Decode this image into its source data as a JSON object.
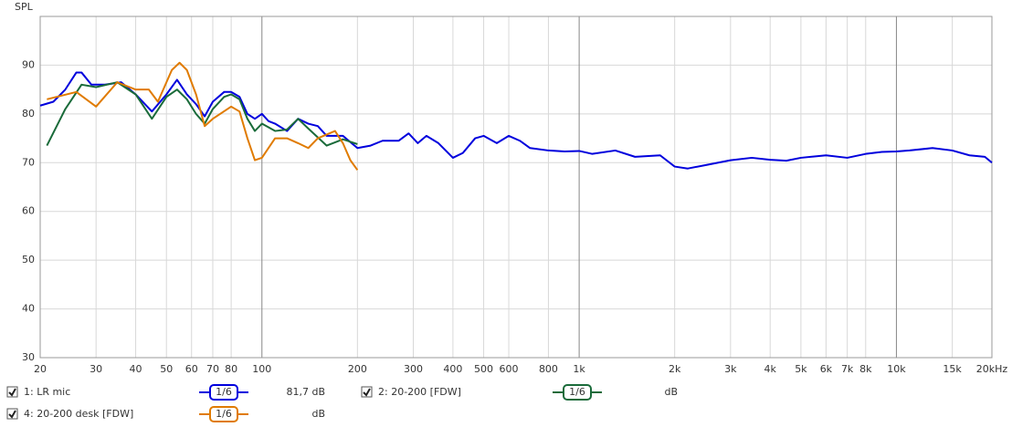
{
  "chart_data": {
    "type": "line",
    "y_label": "SPL",
    "log_x": true,
    "xlim": [
      20,
      20000
    ],
    "ylim": [
      30,
      100
    ],
    "yticks": [
      30,
      40,
      50,
      60,
      70,
      80,
      90
    ],
    "xticks": [
      20,
      30,
      40,
      50,
      60,
      70,
      80,
      100,
      200,
      300,
      400,
      500,
      600,
      800,
      {
        "value": 1000,
        "label": "1k"
      },
      {
        "value": 2000,
        "label": "2k"
      },
      {
        "value": 3000,
        "label": "3k"
      },
      {
        "value": 4000,
        "label": "4k"
      },
      {
        "value": 5000,
        "label": "5k"
      },
      {
        "value": 6000,
        "label": "6k"
      },
      {
        "value": 7000,
        "label": "7k"
      },
      {
        "value": 8000,
        "label": "8k"
      },
      {
        "value": 10000,
        "label": "10k"
      },
      {
        "value": 15000,
        "label": "15k"
      },
      {
        "value": 20000,
        "label": "20kHz"
      }
    ],
    "grid": true,
    "series": [
      {
        "name": "1: LR mic",
        "color": "#0000dd",
        "smoothing": "1/6",
        "readout": "81,7 dB",
        "x": [
          20,
          22,
          24,
          26,
          27,
          29,
          32,
          36,
          40,
          45,
          50,
          54,
          58,
          62,
          66,
          70,
          76,
          80,
          85,
          90,
          95,
          100,
          105,
          110,
          120,
          130,
          140,
          150,
          160,
          180,
          200,
          220,
          240,
          270,
          290,
          310,
          330,
          360,
          400,
          430,
          470,
          500,
          550,
          600,
          650,
          700,
          800,
          900,
          1000,
          1100,
          1300,
          1500,
          1800,
          2000,
          2200,
          2500,
          3000,
          3500,
          4000,
          4500,
          5000,
          6000,
          7000,
          8000,
          9000,
          10000,
          11000,
          13000,
          15000,
          17000,
          19000,
          20000
        ],
        "values": [
          81.7,
          82.5,
          85,
          88.5,
          88.5,
          86,
          86,
          86.5,
          84,
          80.5,
          84,
          87,
          84,
          82,
          79.5,
          82.5,
          84.5,
          84.5,
          83.5,
          80,
          79,
          80,
          78.5,
          78,
          76.5,
          79,
          78,
          77.5,
          75.5,
          75.5,
          73,
          73.5,
          74.5,
          74.5,
          76,
          74,
          75.5,
          74,
          71,
          72,
          75,
          75.5,
          74,
          75.5,
          74.5,
          73,
          72.5,
          72.3,
          72.4,
          71.8,
          72.5,
          71.2,
          71.5,
          69.2,
          68.8,
          69.5,
          70.5,
          71,
          70.6,
          70.4,
          71,
          71.5,
          71,
          71.8,
          72.2,
          72.3,
          72.5,
          73,
          72.5,
          71.5,
          71.2,
          70
        ]
      },
      {
        "name": "2: 20-200 [FDW]",
        "color": "#1a6b3a",
        "smoothing": "1/6",
        "readout": "dB",
        "x": [
          21,
          24,
          27,
          30,
          35,
          40,
          45,
          50,
          54,
          58,
          62,
          66,
          70,
          76,
          80,
          85,
          90,
          95,
          100,
          110,
          120,
          130,
          140,
          160,
          180,
          200
        ],
        "values": [
          73.5,
          81,
          86,
          85.5,
          86.5,
          84,
          79,
          83.5,
          85,
          83,
          80,
          78,
          81,
          83.5,
          84,
          83,
          79,
          76.5,
          78,
          76.5,
          76.8,
          79,
          77,
          73.5,
          74.8,
          73.8
        ]
      },
      {
        "name": "4: 20-200 desk [FDW]",
        "color": "#e07b00",
        "smoothing": "1/6",
        "readout": "dB",
        "x": [
          21,
          26,
          30,
          35,
          40,
          44,
          47,
          52,
          55,
          58,
          62,
          66,
          70,
          80,
          85,
          90,
          95,
          100,
          110,
          120,
          130,
          140,
          150,
          170,
          180,
          190,
          200
        ],
        "values": [
          83,
          84.5,
          81.5,
          86.5,
          85,
          85,
          82.5,
          89,
          90.5,
          89,
          84,
          77.5,
          79,
          81.5,
          80.5,
          75,
          70.5,
          71,
          75,
          75,
          74,
          73,
          75,
          76.5,
          74,
          70.5,
          68.5
        ]
      }
    ]
  }
}
